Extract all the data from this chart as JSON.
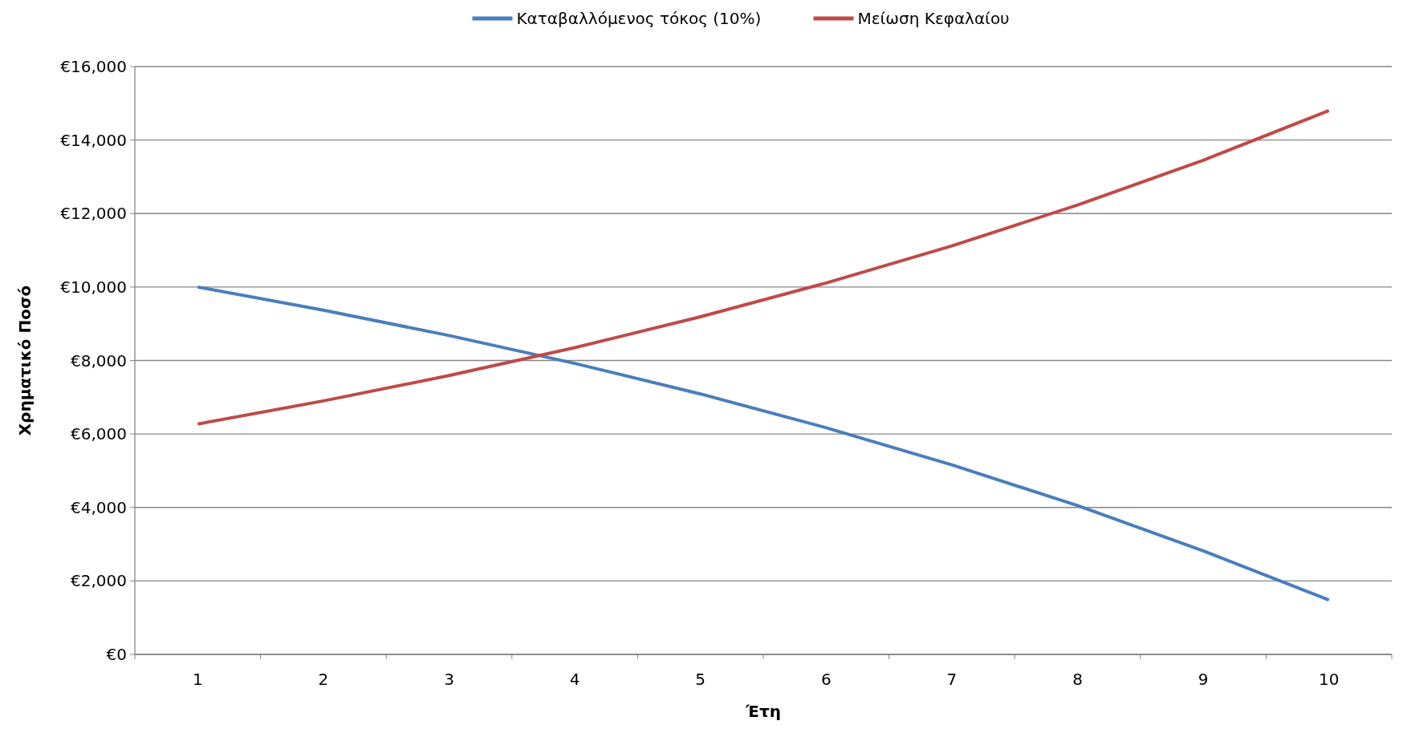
{
  "chart_data": {
    "type": "line",
    "xlabel": "Έτη",
    "ylabel": "Χρηματικό Ποσό",
    "categories": [
      "1",
      "2",
      "3",
      "4",
      "5",
      "6",
      "7",
      "8",
      "9",
      "10"
    ],
    "series": [
      {
        "name": "Καταβαλλόμενος τόκος (10%)",
        "color": "#4a7ebb",
        "values": [
          10000,
          9370,
          8680,
          7920,
          7090,
          6170,
          5160,
          4050,
          2820,
          1480
        ]
      },
      {
        "name": "Μείωση Κεφαλαίου",
        "color": "#be4b48",
        "values": [
          6270,
          6900,
          7590,
          8350,
          9190,
          10110,
          11120,
          12230,
          13450,
          14800
        ]
      }
    ],
    "ylim": [
      0,
      16000
    ],
    "yticks": [
      {
        "value": 0,
        "label": "€0"
      },
      {
        "value": 2000,
        "label": "€2,000"
      },
      {
        "value": 4000,
        "label": "€4,000"
      },
      {
        "value": 6000,
        "label": "€6,000"
      },
      {
        "value": 8000,
        "label": "€8,000"
      },
      {
        "value": 10000,
        "label": "€10,000"
      },
      {
        "value": 12000,
        "label": "€12,000"
      },
      {
        "value": 14000,
        "label": "€14,000"
      },
      {
        "value": 16000,
        "label": "€16,000"
      }
    ],
    "grid": "y",
    "legend": "top",
    "marker": "none",
    "line_style": "solid"
  }
}
